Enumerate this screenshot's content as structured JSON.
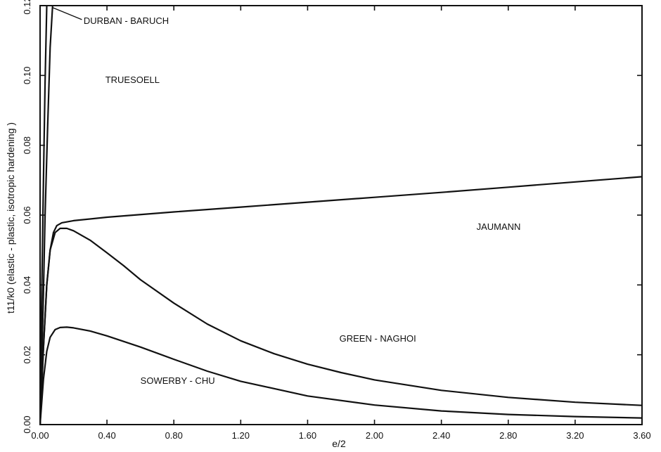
{
  "chart_data": {
    "type": "line",
    "title": "",
    "xlabel": "e/2",
    "ylabel": "t11/k0  (elastic - plastic, isotropic  hardening )",
    "xlim": [
      0.0,
      3.6
    ],
    "ylim": [
      0.0,
      0.12
    ],
    "grid": false,
    "legend": "none",
    "x_ticks": [
      {
        "value": 0.0,
        "label": "0.00"
      },
      {
        "value": 0.4,
        "label": "0.40"
      },
      {
        "value": 0.8,
        "label": "0.80"
      },
      {
        "value": 1.2,
        "label": "1.20"
      },
      {
        "value": 1.6,
        "label": "1.60"
      },
      {
        "value": 2.0,
        "label": "2.00"
      },
      {
        "value": 2.4,
        "label": "2.40"
      },
      {
        "value": 2.8,
        "label": "2.80"
      },
      {
        "value": 3.2,
        "label": "3.20"
      },
      {
        "value": 3.6,
        "label": "3.60"
      }
    ],
    "y_ticks": [
      {
        "value": 0.0,
        "label": "0.00"
      },
      {
        "value": 0.02,
        "label": "0.02"
      },
      {
        "value": 0.04,
        "label": "0.04"
      },
      {
        "value": 0.06,
        "label": "0.06"
      },
      {
        "value": 0.08,
        "label": "0.08"
      },
      {
        "value": 0.1,
        "label": "0.10"
      },
      {
        "value": 0.12,
        "label": "0.12"
      }
    ],
    "series": [
      {
        "name": "DURBAN - BARUCH",
        "x": [
          0.0,
          0.01,
          0.02,
          0.03,
          0.045,
          0.06,
          0.075
        ],
        "y": [
          0.0,
          0.018,
          0.038,
          0.06,
          0.085,
          0.108,
          0.12
        ]
      },
      {
        "name": "TRUESDELL",
        "x": [
          0.0,
          0.005,
          0.012,
          0.02,
          0.03,
          0.04
        ],
        "y": [
          0.0,
          0.02,
          0.045,
          0.07,
          0.098,
          0.12
        ]
      },
      {
        "name": "JAUMANN",
        "x": [
          0.0,
          0.02,
          0.04,
          0.06,
          0.08,
          0.1,
          0.13,
          0.2,
          0.4,
          0.8,
          1.2,
          1.6,
          2.0,
          2.4,
          2.8,
          3.2,
          3.6
        ],
        "y": [
          0.0,
          0.022,
          0.04,
          0.05,
          0.055,
          0.057,
          0.0578,
          0.0584,
          0.0594,
          0.0609,
          0.0623,
          0.0637,
          0.0651,
          0.0665,
          0.068,
          0.0695,
          0.071
        ]
      },
      {
        "name": "GREEN - NAGHDI",
        "x": [
          0.0,
          0.02,
          0.04,
          0.06,
          0.09,
          0.12,
          0.16,
          0.2,
          0.3,
          0.4,
          0.5,
          0.6,
          0.8,
          1.0,
          1.2,
          1.4,
          1.6,
          1.8,
          2.0,
          2.4,
          2.8,
          3.2,
          3.6
        ],
        "y": [
          0.0,
          0.022,
          0.04,
          0.05,
          0.055,
          0.0562,
          0.0562,
          0.0555,
          0.0528,
          0.0492,
          0.0455,
          0.0415,
          0.0348,
          0.0288,
          0.024,
          0.0203,
          0.0173,
          0.0149,
          0.0128,
          0.0098,
          0.0078,
          0.0064,
          0.0055
        ]
      },
      {
        "name": "SOWERBY - CHU",
        "x": [
          0.0,
          0.02,
          0.04,
          0.06,
          0.09,
          0.12,
          0.16,
          0.2,
          0.3,
          0.4,
          0.6,
          0.8,
          1.0,
          1.2,
          1.6,
          2.0,
          2.4,
          2.8,
          3.2,
          3.6
        ],
        "y": [
          0.0,
          0.013,
          0.021,
          0.025,
          0.0272,
          0.0278,
          0.0279,
          0.0277,
          0.0268,
          0.0254,
          0.0222,
          0.0187,
          0.0153,
          0.0124,
          0.0082,
          0.0056,
          0.0039,
          0.0029,
          0.0023,
          0.0019
        ]
      }
    ],
    "annotations": [
      {
        "text": "DURBAN - BARUCH",
        "x": 0.26,
        "y": 0.1155
      },
      {
        "text": "TRUESOELL",
        "x": 0.39,
        "y": 0.0985
      },
      {
        "text": "JAUMANN",
        "x": 2.61,
        "y": 0.0565
      },
      {
        "text": "GREEN - NAGHOI",
        "x": 1.79,
        "y": 0.0245
      },
      {
        "text": "SOWERBY - CHU",
        "x": 0.6,
        "y": 0.0124
      }
    ]
  }
}
